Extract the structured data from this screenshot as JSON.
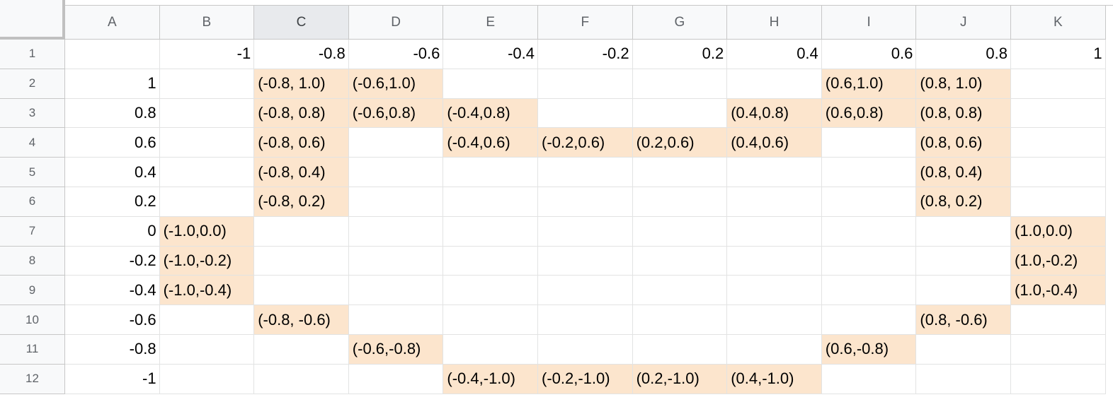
{
  "columns": [
    "A",
    "B",
    "C",
    "D",
    "E",
    "F",
    "G",
    "H",
    "I",
    "J",
    "K"
  ],
  "selected_column": "C",
  "rows": [
    [
      "",
      "-1",
      "-0.8",
      "-0.6",
      "-0.4",
      "-0.2",
      "0.2",
      "0.4",
      "0.6",
      "0.8",
      "1"
    ],
    [
      "1",
      "",
      "(-0.8, 1.0)",
      "(-0.6,1.0)",
      "",
      "",
      "",
      "",
      "(0.6,1.0)",
      "(0.8, 1.0)",
      ""
    ],
    [
      "0.8",
      "",
      "(-0.8, 0.8)",
      "(-0.6,0.8)",
      "(-0.4,0.8)",
      "",
      "",
      "(0.4,0.8)",
      "(0.6,0.8)",
      "(0.8, 0.8)",
      ""
    ],
    [
      "0.6",
      "",
      "(-0.8, 0.6)",
      "",
      "(-0.4,0.6)",
      "(-0.2,0.6)",
      "(0.2,0.6)",
      "(0.4,0.6)",
      "",
      "(0.8, 0.6)",
      ""
    ],
    [
      "0.4",
      "",
      "(-0.8, 0.4)",
      "",
      "",
      "",
      "",
      "",
      "",
      "(0.8, 0.4)",
      ""
    ],
    [
      "0.2",
      "",
      "(-0.8, 0.2)",
      "",
      "",
      "",
      "",
      "",
      "",
      "(0.8, 0.2)",
      ""
    ],
    [
      "0",
      "(-1.0,0.0)",
      "",
      "",
      "",
      "",
      "",
      "",
      "",
      "",
      "(1.0,0.0)"
    ],
    [
      "-0.2",
      "(-1.0,-0.2)",
      "",
      "",
      "",
      "",
      "",
      "",
      "",
      "",
      "(1.0,-0.2)"
    ],
    [
      "-0.4",
      "(-1.0,-0.4)",
      "",
      "",
      "",
      "",
      "",
      "",
      "",
      "",
      "(1.0,-0.4)"
    ],
    [
      "-0.6",
      "",
      "(-0.8, -0.6)",
      "",
      "",
      "",
      "",
      "",
      "",
      "(0.8, -0.6)",
      ""
    ],
    [
      "-0.8",
      "",
      "",
      "(-0.6,-0.8)",
      "",
      "",
      "",
      "",
      "(0.6,-0.8)",
      "",
      ""
    ],
    [
      "-1",
      "",
      "",
      "",
      "(-0.4,-1.0)",
      "(-0.2,-1.0)",
      "(0.2,-1.0)",
      "(0.4,-1.0)",
      "",
      "",
      ""
    ]
  ],
  "highlight_color": "#fce5cd"
}
